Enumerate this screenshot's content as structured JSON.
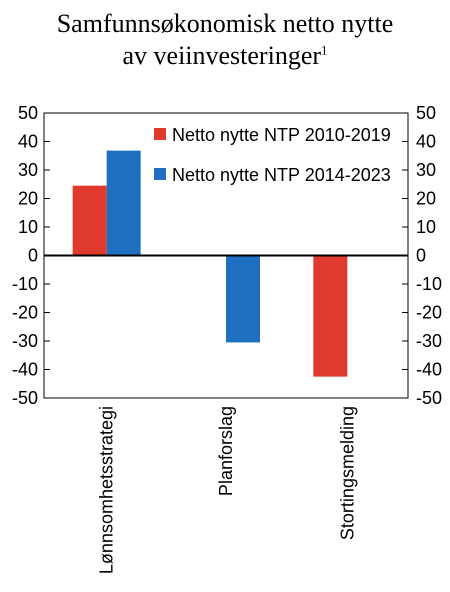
{
  "title_line1": "Samfunnsøkonomisk netto nytte",
  "title_line2": "av veiinvesteringer",
  "title_footnote": "1",
  "chart_data": {
    "type": "bar",
    "categories": [
      "Lønnsomhetsstrategi",
      "Planforslag",
      "Stortingsmelding"
    ],
    "series": [
      {
        "name": "Netto nytte NTP 2010-2019",
        "color": "#e03a2f",
        "values": [
          24.5,
          0.3,
          -42.5
        ]
      },
      {
        "name": "Netto nytte NTP 2014-2023",
        "color": "#1f6fc0",
        "values": [
          36.8,
          -30.5,
          0
        ]
      }
    ],
    "ylim": [
      -50,
      50
    ],
    "yticks": [
      50,
      40,
      30,
      20,
      10,
      0,
      -10,
      -20,
      -30,
      -40,
      -50
    ],
    "legend_position": "top-right",
    "grid": false,
    "secondary_y_axis": true
  }
}
